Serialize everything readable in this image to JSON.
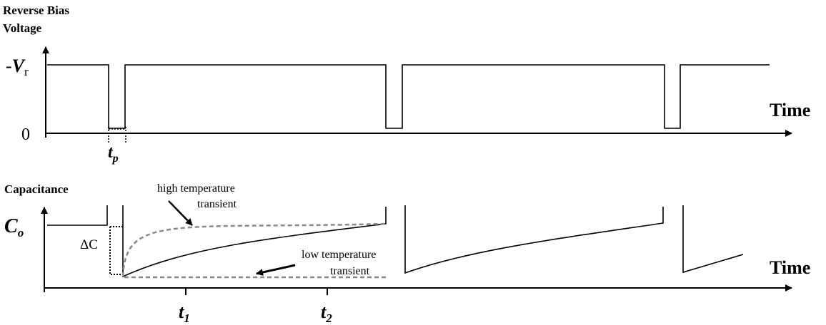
{
  "top_panel": {
    "y_axis_label_line1": "Reverse Bias",
    "y_axis_label_line2": "Voltage",
    "level_high_prefix": "-",
    "level_high_symbol": "V",
    "level_high_subscript": "r",
    "level_zero": "0",
    "x_axis_label": "Time",
    "pulse_width_symbol": "t",
    "pulse_width_subscript": "p"
  },
  "bottom_panel": {
    "y_axis_label": "Capacitance",
    "baseline_symbol": "C",
    "baseline_subscript": "o",
    "delta_label": "ΔC",
    "x_axis_label": "Time",
    "high_temp_line1": "high temperature",
    "high_temp_line2": "transient",
    "low_temp_line1": "low temperature",
    "low_temp_line2": "transient",
    "t1_symbol": "t",
    "t1_subscript": "1",
    "t2_symbol": "t",
    "t2_subscript": "2"
  },
  "colors": {
    "line": "#000000",
    "dashed_transient": "#888888"
  }
}
